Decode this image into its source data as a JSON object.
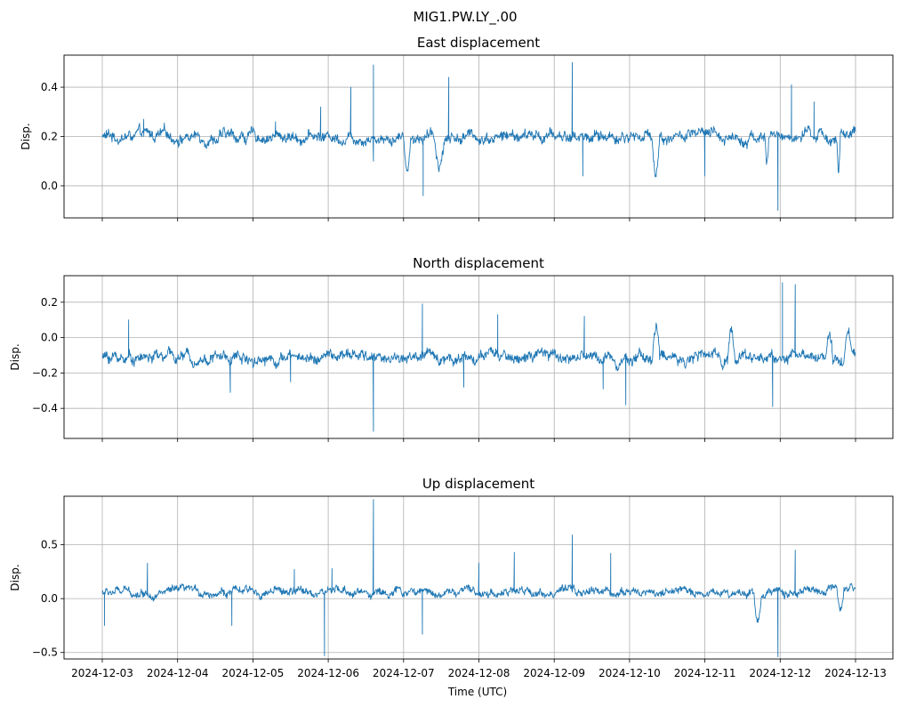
{
  "figure": {
    "suptitle": "MIG1.PW.LY_.00",
    "xlabel": "Time (UTC)",
    "line_color": "#1f77b4",
    "grid_color": "#b0b0b0"
  },
  "chart_data": [
    {
      "type": "line",
      "title": "East displacement",
      "xlabel": "",
      "ylabel": "Disp.",
      "x_range_days": [
        0,
        10
      ],
      "ylim": [
        -0.13,
        0.53
      ],
      "yticks": [
        0.0,
        0.2,
        0.4
      ],
      "ytick_labels": [
        "0.0",
        "0.2",
        "0.4"
      ],
      "baseline": 0.2,
      "noise": 0.018,
      "spikes": [
        {
          "day": 0.55,
          "value": 0.27
        },
        {
          "day": 2.3,
          "value": 0.26
        },
        {
          "day": 2.9,
          "value": 0.32
        },
        {
          "day": 3.3,
          "value": 0.4
        },
        {
          "day": 3.6,
          "value": 0.49
        },
        {
          "day": 3.6,
          "value": 0.1
        },
        {
          "day": 4.26,
          "value": -0.04
        },
        {
          "day": 4.6,
          "value": 0.44
        },
        {
          "day": 6.24,
          "value": 0.5
        },
        {
          "day": 6.38,
          "value": 0.04
        },
        {
          "day": 8.0,
          "value": 0.04
        },
        {
          "day": 8.97,
          "value": -0.1
        },
        {
          "day": 9.15,
          "value": 0.41
        },
        {
          "day": 9.45,
          "value": 0.34
        }
      ],
      "dips": [
        {
          "start": 4.0,
          "end": 4.1,
          "value": 0.08
        },
        {
          "start": 4.4,
          "end": 4.55,
          "value": 0.1
        },
        {
          "start": 7.3,
          "end": 7.4,
          "value": 0.06
        },
        {
          "start": 8.8,
          "end": 8.85,
          "value": 0.08
        },
        {
          "start": 9.75,
          "end": 9.8,
          "value": 0.06
        }
      ]
    },
    {
      "type": "line",
      "title": "North displacement",
      "xlabel": "",
      "ylabel": "Disp.",
      "x_range_days": [
        0,
        10
      ],
      "ylim": [
        -0.57,
        0.35
      ],
      "yticks": [
        -0.4,
        -0.2,
        0.0,
        0.2
      ],
      "ytick_labels": [
        "−0.4",
        "−0.2",
        "0.0",
        "0.2"
      ],
      "baseline": -0.11,
      "noise": 0.025,
      "spikes": [
        {
          "day": 0.35,
          "value": 0.1
        },
        {
          "day": 1.7,
          "value": -0.31
        },
        {
          "day": 2.5,
          "value": -0.25
        },
        {
          "day": 3.6,
          "value": -0.53
        },
        {
          "day": 4.25,
          "value": 0.19
        },
        {
          "day": 4.8,
          "value": -0.28
        },
        {
          "day": 5.25,
          "value": 0.13
        },
        {
          "day": 6.4,
          "value": 0.12
        },
        {
          "day": 6.65,
          "value": -0.29
        },
        {
          "day": 6.95,
          "value": -0.38
        },
        {
          "day": 8.9,
          "value": -0.39
        },
        {
          "day": 9.03,
          "value": 0.31
        },
        {
          "day": 9.2,
          "value": 0.3
        }
      ],
      "dips": [
        {
          "start": 7.3,
          "end": 7.4,
          "value": 0.05
        },
        {
          "start": 8.3,
          "end": 8.4,
          "value": 0.05
        },
        {
          "start": 9.6,
          "end": 9.7,
          "value": 0.05
        },
        {
          "start": 9.85,
          "end": 9.95,
          "value": 0.06
        }
      ]
    },
    {
      "type": "line",
      "title": "Up displacement",
      "xlabel": "Time (UTC)",
      "ylabel": "Disp.",
      "x_range_days": [
        0,
        10
      ],
      "ylim": [
        -0.56,
        0.95
      ],
      "yticks": [
        -0.5,
        0.0,
        0.5
      ],
      "ytick_labels": [
        "−0.5",
        "0.0",
        "0.5"
      ],
      "baseline": 0.06,
      "noise": 0.03,
      "spikes": [
        {
          "day": 0.03,
          "value": -0.25
        },
        {
          "day": 0.6,
          "value": 0.33
        },
        {
          "day": 1.72,
          "value": -0.25
        },
        {
          "day": 2.55,
          "value": 0.27
        },
        {
          "day": 2.95,
          "value": -0.53
        },
        {
          "day": 3.05,
          "value": 0.28
        },
        {
          "day": 3.6,
          "value": 0.92
        },
        {
          "day": 4.25,
          "value": -0.33
        },
        {
          "day": 5.0,
          "value": 0.33
        },
        {
          "day": 5.47,
          "value": 0.43
        },
        {
          "day": 6.24,
          "value": 0.59
        },
        {
          "day": 6.75,
          "value": 0.42
        },
        {
          "day": 8.97,
          "value": -0.54
        },
        {
          "day": 9.2,
          "value": 0.45
        }
      ],
      "dips": [
        {
          "start": 8.65,
          "end": 8.75,
          "value": -0.2
        },
        {
          "start": 9.75,
          "end": 9.85,
          "value": -0.15
        }
      ]
    }
  ],
  "xticks": [
    "2024-12-03",
    "2024-12-04",
    "2024-12-05",
    "2024-12-06",
    "2024-12-07",
    "2024-12-08",
    "2024-12-09",
    "2024-12-10",
    "2024-12-11",
    "2024-12-12",
    "2024-12-13"
  ]
}
